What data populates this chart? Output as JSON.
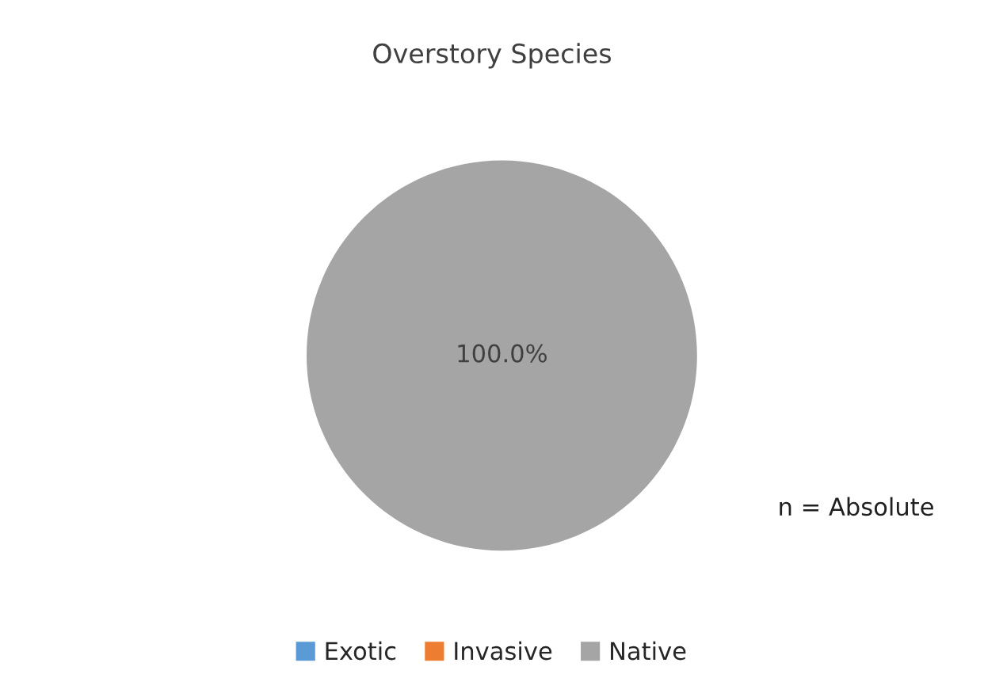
{
  "chart_data": {
    "type": "pie",
    "title": "Overstory Species",
    "categories": [
      "Exotic",
      "Invasive",
      "Native"
    ],
    "values": [
      0,
      0,
      100
    ],
    "colors": [
      "#5b9bd5",
      "#ed7d31",
      "#a5a5a5"
    ],
    "value_labels": [
      null,
      null,
      "100.0%"
    ],
    "legend": "bottom",
    "annotations": [
      "n = Absolute"
    ]
  }
}
